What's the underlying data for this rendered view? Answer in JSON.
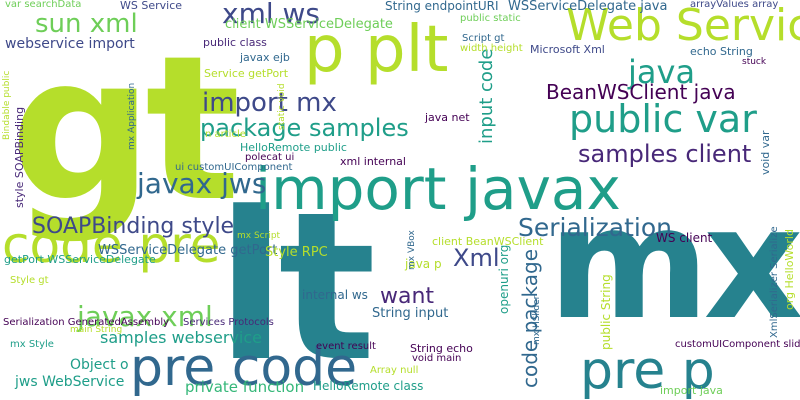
{
  "palette": {
    "lime": "#b5de2b",
    "green": "#6ece58",
    "teal": "#1f9e89",
    "teal_dark": "#26828e",
    "blue": "#31688e",
    "navy": "#3e4989",
    "indigo": "#482878",
    "purple": "#440154",
    "light_green": "#35b779",
    "yellow": "#fde725"
  },
  "words": [
    {
      "text": "gt",
      "color": "lime"
    },
    {
      "text": "lt",
      "color": "teal_dark"
    },
    {
      "text": "mx",
      "color": "teal_dark"
    },
    {
      "text": "p plt",
      "color": "lime"
    },
    {
      "text": "import javax",
      "color": "teal"
    },
    {
      "text": "code pre",
      "color": "lime"
    },
    {
      "text": "pre code",
      "color": "blue"
    },
    {
      "text": "pre p",
      "color": "teal_dark"
    },
    {
      "text": "Web Service",
      "color": "lime"
    },
    {
      "text": "public var",
      "color": "teal"
    },
    {
      "text": "sun xml",
      "color": "green"
    },
    {
      "text": "xml ws",
      "color": "navy"
    },
    {
      "text": "java",
      "color": "teal"
    },
    {
      "text": "javax jws",
      "color": "blue"
    },
    {
      "text": "javax xml",
      "color": "green"
    },
    {
      "text": "SOAPBinding style",
      "color": "navy"
    },
    {
      "text": "Serialization",
      "color": "blue"
    },
    {
      "text": "samples client",
      "color": "indigo"
    },
    {
      "text": "import mx",
      "color": "navy"
    },
    {
      "text": "package samples",
      "color": "teal"
    },
    {
      "text": "BeanWSClient java",
      "color": "purple"
    },
    {
      "text": "Xml",
      "color": "navy"
    },
    {
      "text": "want",
      "color": "indigo"
    },
    {
      "text": "code package",
      "color": "blue"
    },
    {
      "text": "input code",
      "color": "teal"
    },
    {
      "text": "samples webservice",
      "color": "teal"
    },
    {
      "text": "jws WebService",
      "color": "teal"
    },
    {
      "text": "private function",
      "color": "light_green"
    },
    {
      "text": "HelloRemote class",
      "color": "teal"
    },
    {
      "text": "webservice import",
      "color": "navy"
    },
    {
      "text": "client WSServiceDelegate",
      "color": "green"
    },
    {
      "text": "WSServiceDelegate java",
      "color": "blue"
    },
    {
      "text": "WSServiceDelegate getPort",
      "color": "blue"
    },
    {
      "text": "getPort WSServiceDelegate",
      "color": "teal"
    },
    {
      "text": "Object o",
      "color": "teal"
    },
    {
      "text": "String input",
      "color": "blue"
    },
    {
      "text": "internal ws",
      "color": "blue"
    },
    {
      "text": "java p",
      "color": "lime"
    },
    {
      "text": "Style RPC",
      "color": "lime"
    },
    {
      "text": "WS client",
      "color": "purple"
    },
    {
      "text": "client BeanWSClient",
      "color": "lime"
    },
    {
      "text": "xml internal",
      "color": "purple"
    },
    {
      "text": "HelloRemote public",
      "color": "teal"
    },
    {
      "text": "ui customUIComponent",
      "color": "blue"
    },
    {
      "text": "polecat ui",
      "color": "purple"
    },
    {
      "text": "Services Protocols",
      "color": "indigo"
    },
    {
      "text": "Serialization GeneratedAssembly",
      "color": "purple"
    },
    {
      "text": "Service getPort",
      "color": "lime"
    },
    {
      "text": "javax ejb",
      "color": "blue"
    },
    {
      "text": "public class",
      "color": "indigo"
    },
    {
      "text": "String endpointURI",
      "color": "blue"
    },
    {
      "text": "arrayValues array",
      "color": "navy"
    },
    {
      "text": "echo String",
      "color": "blue"
    },
    {
      "text": "Microsoft Xml",
      "color": "navy"
    },
    {
      "text": "Script gt",
      "color": "blue"
    },
    {
      "text": "width height",
      "color": "lime"
    },
    {
      "text": "public static",
      "color": "green"
    },
    {
      "text": "java net",
      "color": "purple"
    },
    {
      "text": "String echo",
      "color": "purple"
    },
    {
      "text": "void main",
      "color": "purple"
    },
    {
      "text": "event result",
      "color": "purple"
    },
    {
      "text": "Array null",
      "color": "lime"
    },
    {
      "text": "customUIComponent slider",
      "color": "purple"
    },
    {
      "text": "import java",
      "color": "green"
    },
    {
      "text": "mx Script",
      "color": "lime"
    },
    {
      "text": "mx HSlider",
      "color": "blue"
    },
    {
      "text": "mx VBox",
      "color": "blue"
    },
    {
      "text": "n article",
      "color": "lime"
    },
    {
      "text": "Style gt",
      "color": "lime"
    },
    {
      "text": "mx Style",
      "color": "teal"
    },
    {
      "text": "main String",
      "color": "lime"
    },
    {
      "text": "style SOAPBinding",
      "color": "indigo"
    },
    {
      "text": "Bindable public",
      "color": "lime"
    },
    {
      "text": "var searchData",
      "color": "green"
    },
    {
      "text": "WS Service",
      "color": "navy"
    },
    {
      "text": "static void",
      "color": "lime"
    },
    {
      "text": "mx Application",
      "color": "blue"
    },
    {
      "text": "openuri org",
      "color": "teal"
    },
    {
      "text": "public String",
      "color": "lime"
    },
    {
      "text": "void var",
      "color": "blue"
    },
    {
      "text": "XmlSerializer Serialize",
      "color": "blue"
    },
    {
      "text": "org HelloWorld",
      "color": "lime"
    },
    {
      "text": "stuck",
      "color": "purple"
    }
  ]
}
